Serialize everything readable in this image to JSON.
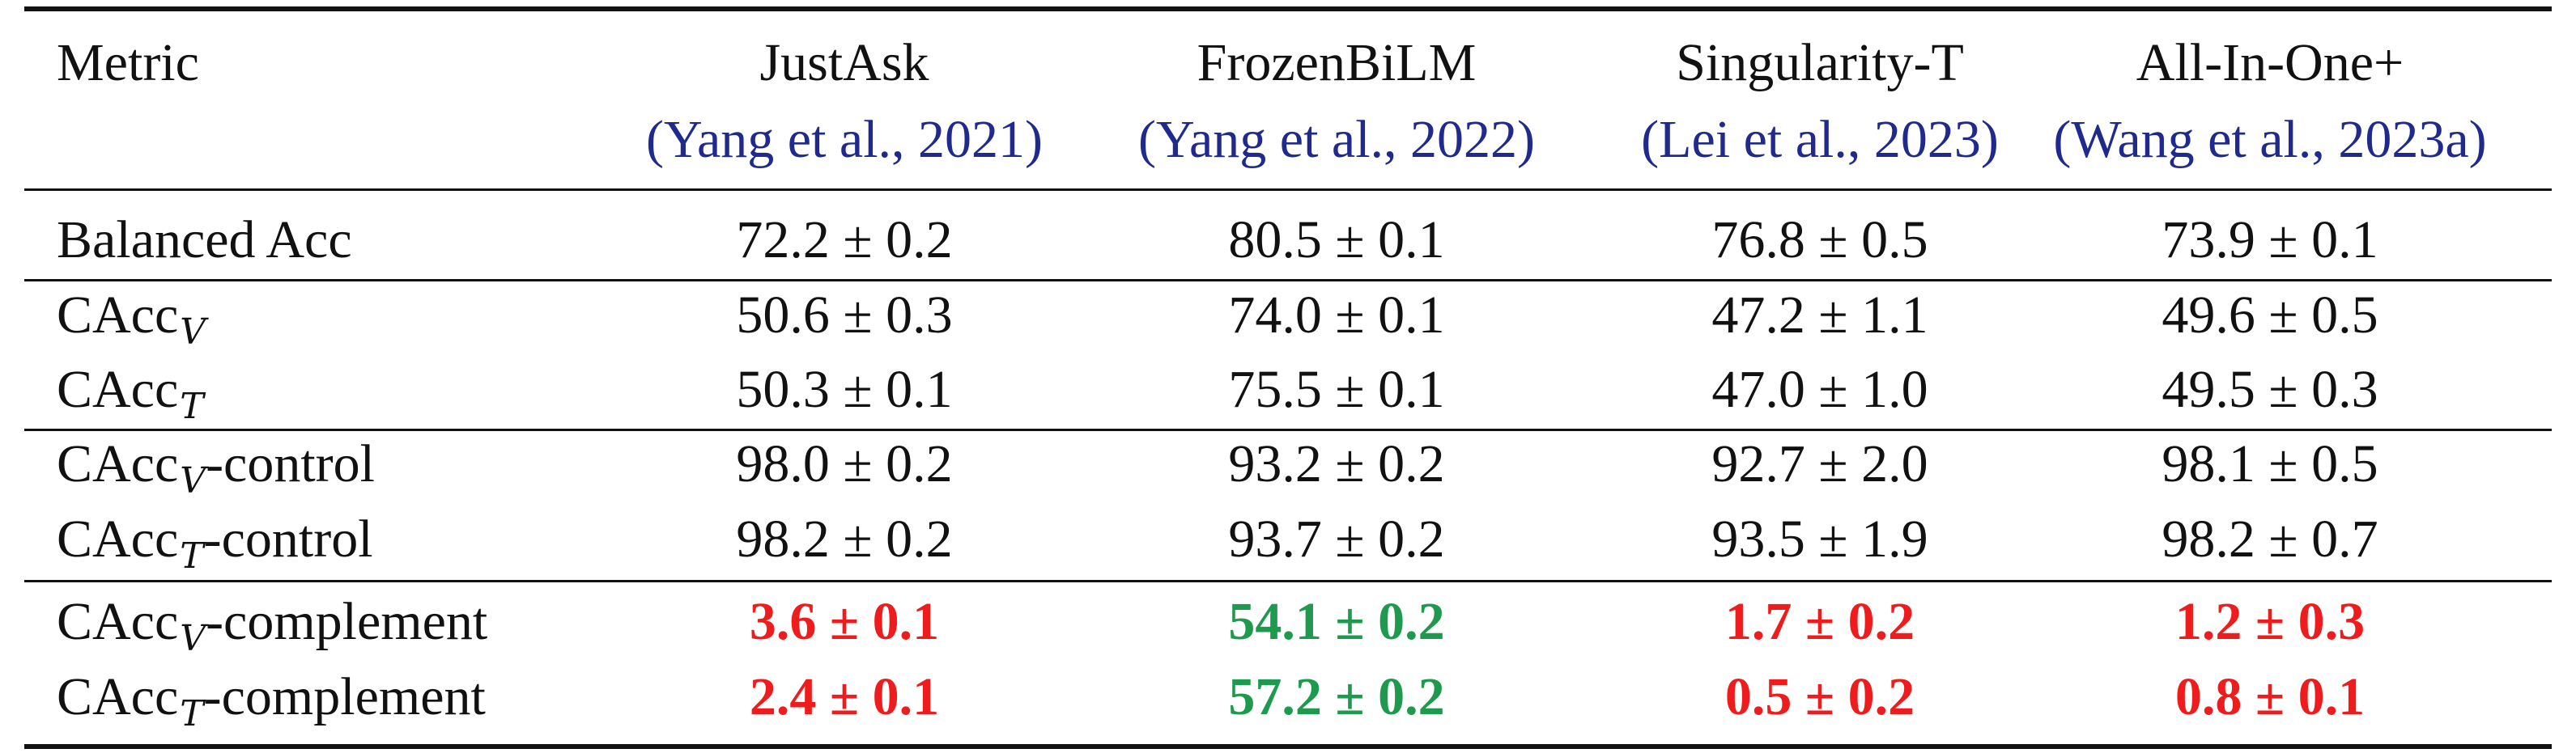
{
  "colors": {
    "citation": "#1f2a8c",
    "red": "#ee1c1c",
    "green": "#1e9a4e",
    "text": "#111111"
  },
  "header": {
    "metric": "Metric",
    "models": [
      {
        "name": "JustAsk",
        "citation": "(Yang et al., 2021)"
      },
      {
        "name": "FrozenBiLM",
        "citation": "(Yang et al., 2022)"
      },
      {
        "name": "Singularity-T",
        "citation": "(Lei et al., 2023)"
      },
      {
        "name": "All-In-One+",
        "citation": "(Wang et al., 2023a)"
      }
    ]
  },
  "rows": [
    {
      "base": "Balanced Acc",
      "sub": "",
      "suffix": "",
      "values": [
        "72.2 ± 0.2",
        "80.5 ± 0.1",
        "76.8 ± 0.5",
        "73.9 ± 0.1"
      ],
      "styles": [
        "n",
        "n",
        "n",
        "n"
      ]
    },
    {
      "base": "CAcc",
      "sub": "V",
      "suffix": "",
      "values": [
        "50.6 ± 0.3",
        "74.0 ± 0.1",
        "47.2 ± 1.1",
        "49.6 ± 0.5"
      ],
      "styles": [
        "n",
        "n",
        "n",
        "n"
      ]
    },
    {
      "base": "CAcc",
      "sub": "T",
      "suffix": "",
      "values": [
        "50.3 ± 0.1",
        "75.5 ± 0.1",
        "47.0 ± 1.0",
        "49.5 ± 0.3"
      ],
      "styles": [
        "n",
        "n",
        "n",
        "n"
      ]
    },
    {
      "base": "CAcc",
      "sub": "V",
      "suffix": "-control",
      "values": [
        "98.0 ± 0.2",
        "93.2 ± 0.2",
        "92.7 ± 2.0",
        "98.1 ± 0.5"
      ],
      "styles": [
        "n",
        "n",
        "n",
        "n"
      ]
    },
    {
      "base": "CAcc",
      "sub": "T",
      "suffix": "-control",
      "values": [
        "98.2 ± 0.2",
        "93.7 ± 0.2",
        "93.5 ± 1.9",
        "98.2 ± 0.7"
      ],
      "styles": [
        "n",
        "n",
        "n",
        "n"
      ]
    },
    {
      "base": "CAcc",
      "sub": "V",
      "suffix": "-complement",
      "values": [
        "3.6 ± 0.1",
        "54.1 ± 0.2",
        "1.7 ± 0.2",
        "1.2 ± 0.3"
      ],
      "styles": [
        "red",
        "green",
        "red",
        "red"
      ]
    },
    {
      "base": "CAcc",
      "sub": "T",
      "suffix": "-complement",
      "values": [
        "2.4 ± 0.1",
        "57.2 ± 0.2",
        "0.5 ± 0.2",
        "0.8 ± 0.1"
      ],
      "styles": [
        "red",
        "green",
        "red",
        "red"
      ]
    }
  ]
}
